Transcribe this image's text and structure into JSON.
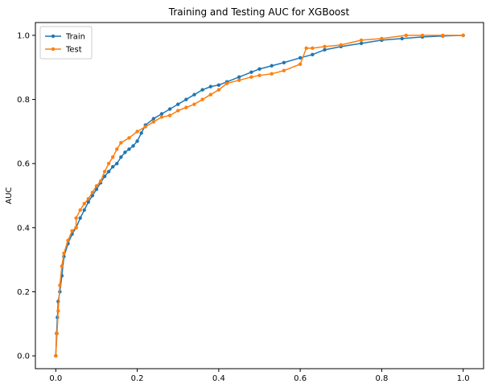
{
  "chart_data": {
    "type": "line",
    "title": "Training and Testing AUC for XGBoost",
    "xlabel": "",
    "ylabel": "AUC",
    "xlim": [
      -0.05,
      1.05
    ],
    "ylim": [
      -0.04,
      1.04
    ],
    "xticks": [
      0.0,
      0.2,
      0.4,
      0.6,
      0.8,
      1.0
    ],
    "xtick_labels": [
      "0.0",
      "0.2",
      "0.4",
      "0.6",
      "0.8",
      "1.0"
    ],
    "yticks": [
      0.0,
      0.2,
      0.4,
      0.6,
      0.8,
      1.0
    ],
    "ytick_labels": [
      "0.0",
      "0.2",
      "0.4",
      "0.6",
      "0.8",
      "1.0"
    ],
    "grid": false,
    "legend_position": "top-left",
    "series": [
      {
        "name": "Train",
        "color": "#1f77b4",
        "marker": "point",
        "x": [
          0.0,
          0.002,
          0.004,
          0.006,
          0.01,
          0.015,
          0.02,
          0.03,
          0.04,
          0.05,
          0.06,
          0.07,
          0.08,
          0.09,
          0.1,
          0.11,
          0.12,
          0.13,
          0.14,
          0.15,
          0.16,
          0.17,
          0.18,
          0.19,
          0.2,
          0.21,
          0.22,
          0.24,
          0.26,
          0.28,
          0.3,
          0.32,
          0.34,
          0.36,
          0.38,
          0.4,
          0.42,
          0.45,
          0.48,
          0.5,
          0.53,
          0.56,
          0.6,
          0.63,
          0.66,
          0.7,
          0.75,
          0.8,
          0.85,
          0.9,
          0.95,
          1.0
        ],
        "y": [
          0.0,
          0.07,
          0.12,
          0.17,
          0.2,
          0.25,
          0.31,
          0.35,
          0.38,
          0.4,
          0.43,
          0.455,
          0.48,
          0.5,
          0.52,
          0.54,
          0.56,
          0.575,
          0.59,
          0.6,
          0.62,
          0.635,
          0.645,
          0.655,
          0.67,
          0.695,
          0.72,
          0.74,
          0.755,
          0.77,
          0.785,
          0.8,
          0.815,
          0.83,
          0.84,
          0.845,
          0.855,
          0.87,
          0.885,
          0.895,
          0.905,
          0.915,
          0.93,
          0.94,
          0.955,
          0.965,
          0.975,
          0.985,
          0.99,
          0.995,
          0.998,
          1.0
        ]
      },
      {
        "name": "Test",
        "color": "#ff7f0e",
        "marker": "point",
        "x": [
          0.0,
          0.003,
          0.006,
          0.01,
          0.015,
          0.02,
          0.03,
          0.04,
          0.05,
          0.05,
          0.06,
          0.07,
          0.08,
          0.09,
          0.1,
          0.11,
          0.12,
          0.13,
          0.14,
          0.15,
          0.16,
          0.18,
          0.2,
          0.22,
          0.24,
          0.26,
          0.28,
          0.3,
          0.32,
          0.34,
          0.36,
          0.38,
          0.4,
          0.42,
          0.45,
          0.48,
          0.5,
          0.53,
          0.56,
          0.6,
          0.615,
          0.63,
          0.66,
          0.7,
          0.75,
          0.8,
          0.86,
          0.9,
          0.95,
          1.0
        ],
        "y": [
          0.0,
          0.07,
          0.14,
          0.22,
          0.28,
          0.32,
          0.36,
          0.39,
          0.4,
          0.43,
          0.455,
          0.475,
          0.49,
          0.51,
          0.53,
          0.545,
          0.575,
          0.6,
          0.62,
          0.645,
          0.665,
          0.68,
          0.7,
          0.715,
          0.73,
          0.745,
          0.75,
          0.765,
          0.775,
          0.785,
          0.8,
          0.815,
          0.83,
          0.85,
          0.86,
          0.87,
          0.875,
          0.88,
          0.89,
          0.91,
          0.96,
          0.96,
          0.965,
          0.97,
          0.985,
          0.99,
          1.0,
          1.0,
          1.0,
          1.0
        ]
      }
    ]
  }
}
